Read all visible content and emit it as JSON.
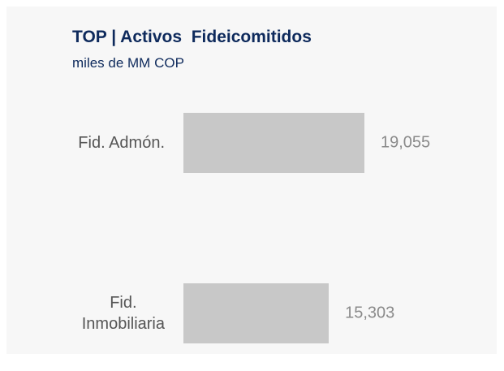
{
  "chart_data": {
    "type": "bar",
    "orientation": "horizontal",
    "title": "TOP | Activos  Fideicomitidos",
    "subtitle": "miles de MM COP",
    "categories": [
      "Fid. Admón.",
      "Fid.\nInmobiliaria"
    ],
    "values": [
      19055,
      15303
    ],
    "value_labels": [
      "19,055",
      "15,303"
    ],
    "color": "#c8c8c8"
  }
}
